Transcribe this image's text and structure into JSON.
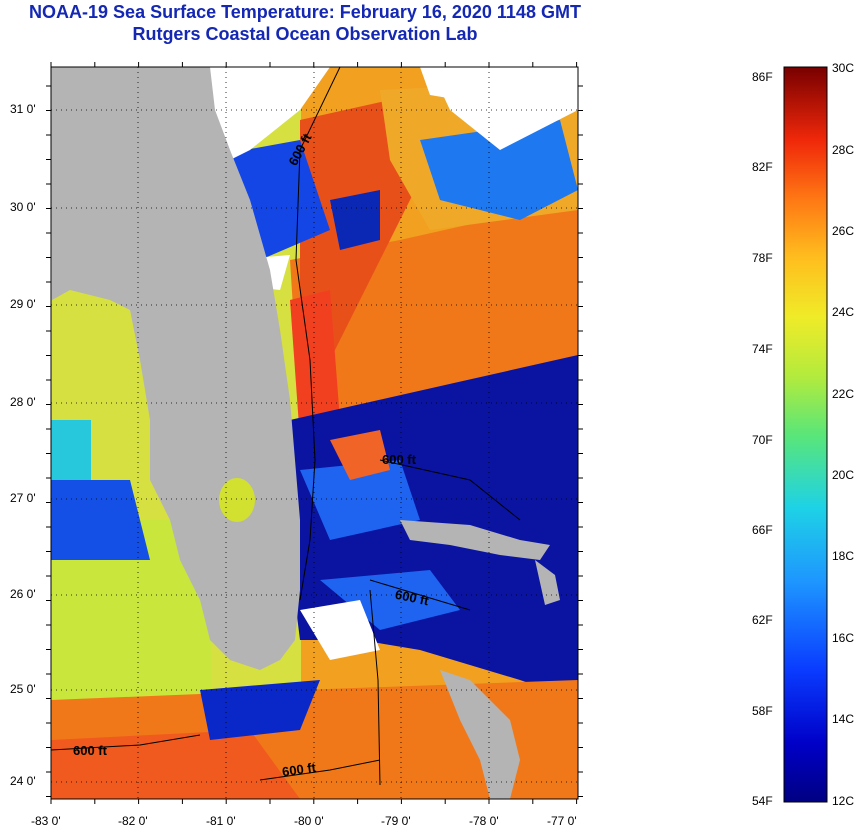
{
  "title": "NOAA-19 Sea Surface Temperature:  February 16, 2020 1148 GMT",
  "subtitle": "Rutgers Coastal Ocean Observation Lab",
  "lat_labels": [
    "31 0'",
    "30 0'",
    "29 0'",
    "28 0'",
    "27 0'",
    "26 0'",
    "25 0'",
    "24 0'"
  ],
  "lon_labels": [
    "-83 0'",
    "-82 0'",
    "-81 0'",
    "-80 0'",
    "-79 0'",
    "-78 0'",
    "-77 0'"
  ],
  "depth_label": "600 ft",
  "colorbar": {
    "f_labels": [
      "86F",
      "82F",
      "78F",
      "74F",
      "70F",
      "66F",
      "62F",
      "58F",
      "54F"
    ],
    "c_labels": [
      "30C",
      "28C",
      "26C",
      "24C",
      "22C",
      "20C",
      "18C",
      "16C",
      "14C",
      "12C"
    ],
    "min_c": 12,
    "max_c": 30
  },
  "colors": {
    "land": "#b4b4b4",
    "cloud": "#ffffff",
    "title": "#1428b4"
  }
}
